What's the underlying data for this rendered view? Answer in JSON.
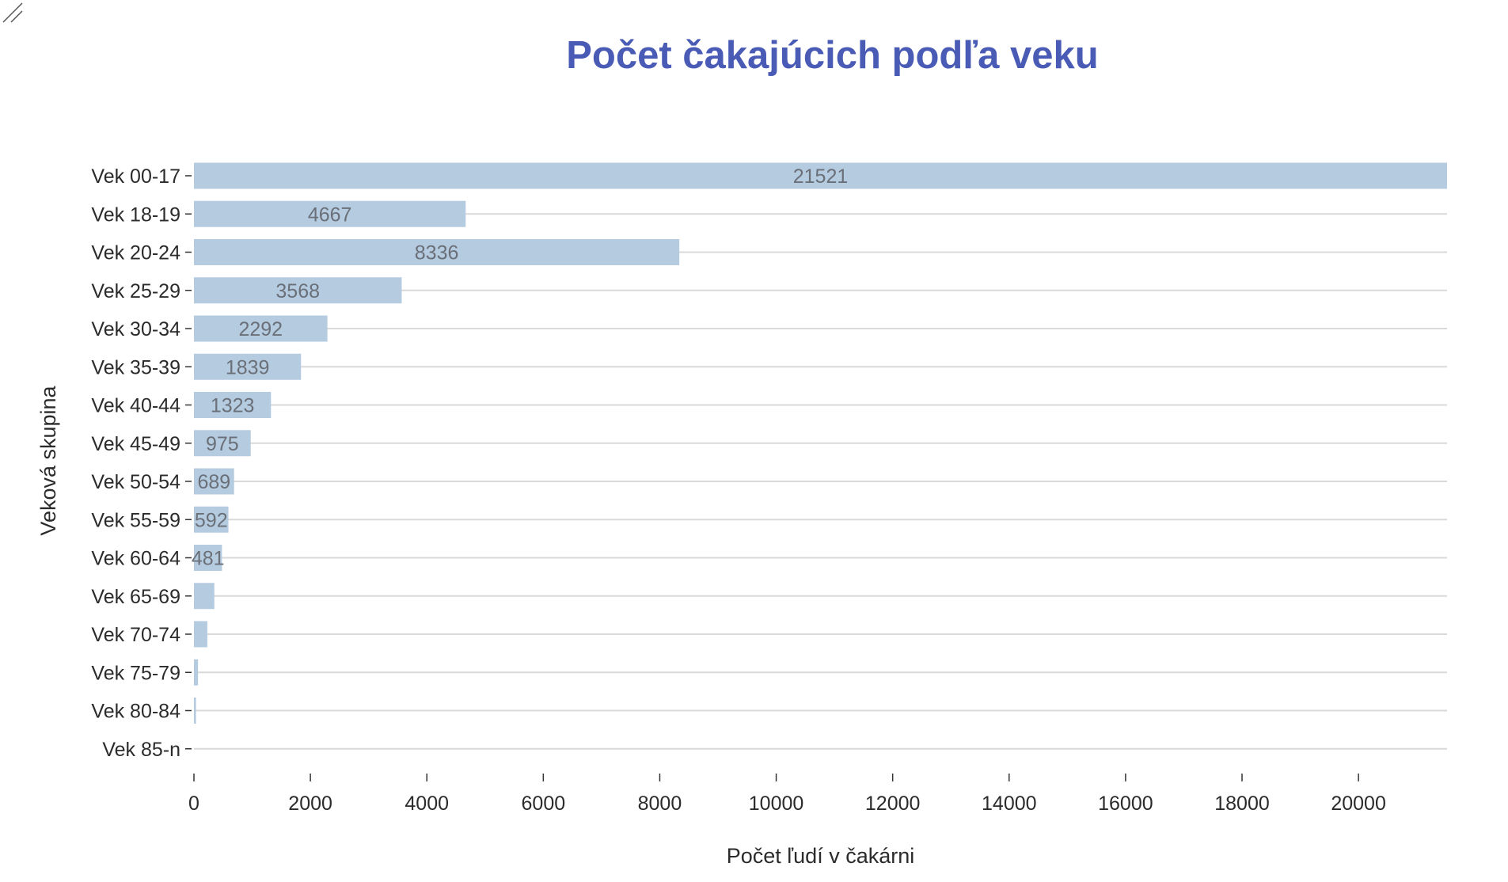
{
  "chart_data": {
    "type": "bar",
    "orientation": "horizontal",
    "title": "Počet čakajúcich podľa veku",
    "xlabel": "Počet ľudí v čakárni",
    "ylabel": "Veková skupina",
    "categories": [
      "Vek 00-17",
      "Vek 18-19",
      "Vek 20-24",
      "Vek 25-29",
      "Vek 30-34",
      "Vek 35-39",
      "Vek 40-44",
      "Vek 45-49",
      "Vek 50-54",
      "Vek 55-59",
      "Vek 60-64",
      "Vek 65-69",
      "Vek 70-74",
      "Vek 75-79",
      "Vek 80-84",
      "Vek 85-n"
    ],
    "values": [
      21521,
      4667,
      8336,
      3568,
      2292,
      1839,
      1323,
      975,
      689,
      592,
      481,
      350,
      230,
      70,
      35,
      0
    ],
    "data_labels": [
      "21521",
      "4667",
      "8336",
      "3568",
      "2292",
      "1839",
      "1323",
      "975",
      "689",
      "592",
      "481",
      "",
      "",
      "",
      "",
      ""
    ],
    "xlim": [
      0,
      21521
    ],
    "xticks": [
      0,
      2000,
      4000,
      6000,
      8000,
      10000,
      12000,
      14000,
      16000,
      18000,
      20000
    ],
    "grid": "horizontal",
    "bar_color": "#b5cbe0",
    "grid_color": "#d9d9d9",
    "title_color": "#4a5bb6"
  },
  "resize_handle_icon": "resize-handle-icon"
}
